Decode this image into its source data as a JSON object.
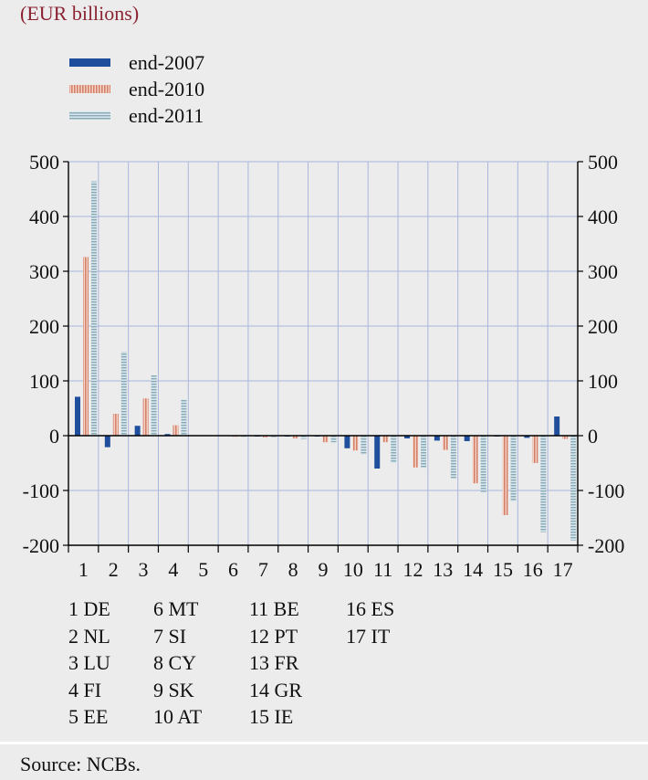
{
  "subtitle": "(EUR billions)",
  "source": "Source: NCBs.",
  "colors": {
    "end2007": "#1f4e9c",
    "end2010": "#e09a82",
    "end2011": "#a9c4cf",
    "grid": "#a9b6dd",
    "subtitle": "#8b2332"
  },
  "country_key": [
    "1 DE",
    "2 NL",
    "3 LU",
    "4 FI",
    "5 EE",
    "6 MT",
    "7 SI",
    "8 CY",
    "9 SK",
    "10 AT",
    "11 BE",
    "12 PT",
    "13 FR",
    "14 GR",
    "15 IE",
    "16 ES",
    "17 IT"
  ],
  "chart_data": {
    "type": "bar",
    "title": "",
    "xlabel": "",
    "ylabel": "",
    "ylim": [
      -200,
      500
    ],
    "yticks": [
      500,
      400,
      300,
      200,
      100,
      0,
      -100,
      -200
    ],
    "ytick_labels": [
      "500",
      "400",
      "300",
      "200",
      "100",
      "0",
      "-100",
      "-200"
    ],
    "grid": true,
    "legend": "top-left",
    "categories": [
      "1",
      "2",
      "3",
      "4",
      "5",
      "6",
      "7",
      "8",
      "9",
      "10",
      "11",
      "12",
      "13",
      "14",
      "15",
      "16",
      "17"
    ],
    "series": [
      {
        "name": "end-2007",
        "values": [
          71,
          -21,
          18,
          3,
          0,
          0,
          -1,
          -1,
          -1,
          -23,
          -60,
          -5,
          -9,
          -10,
          -1,
          -4,
          35
        ]
      },
      {
        "name": "end-2010",
        "values": [
          326,
          40,
          68,
          19,
          0,
          -2,
          -3,
          -5,
          -12,
          -27,
          -12,
          -58,
          -26,
          -87,
          -145,
          -50,
          -6
        ]
      },
      {
        "name": "end-2011",
        "values": [
          464,
          153,
          110,
          66,
          0,
          -2,
          -3,
          -6,
          -12,
          -34,
          -50,
          -59,
          -78,
          -104,
          -120,
          -176,
          -191
        ]
      }
    ]
  }
}
